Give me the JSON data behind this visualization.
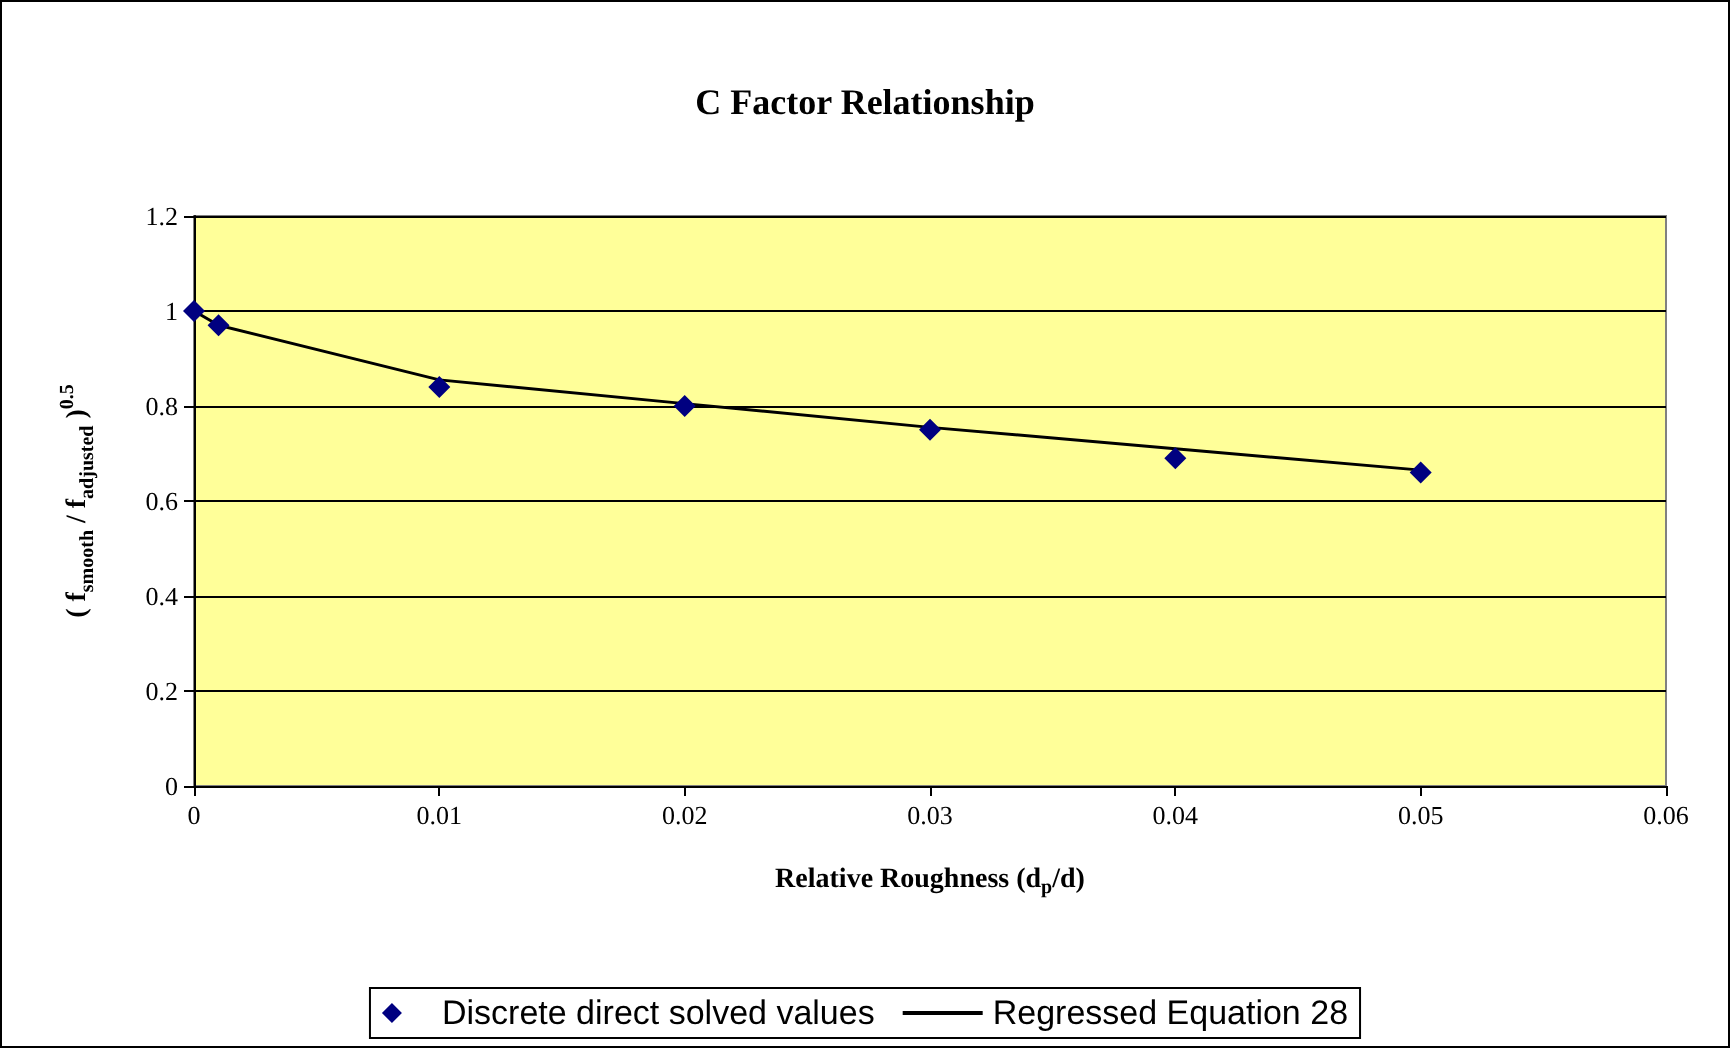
{
  "chart_data": {
    "type": "scatter",
    "title": "C Factor Relationship",
    "xlabel": "Relative Roughness (d$_{p}$/d)",
    "ylabel": "( f$_{smooth}$ / f$_{adjusted}$ )$^{0.5}$",
    "series": [
      {
        "name": "Discrete direct solved values",
        "color": "#000080",
        "marker": "diamond",
        "x": [
          0,
          0.001,
          0.01,
          0.02,
          0.03,
          0.04,
          0.05
        ],
        "values": [
          1.0,
          0.97,
          0.84,
          0.8,
          0.75,
          0.69,
          0.66
        ]
      },
      {
        "name": "Regressed Equation 28",
        "type": "line",
        "color": "#000000",
        "marker": "none",
        "line_style": "solid",
        "x": [
          0,
          0.001,
          0.01,
          0.02,
          0.03,
          0.04,
          0.05
        ],
        "values": [
          1.0,
          0.97,
          0.855,
          0.805,
          0.755,
          0.71,
          0.665
        ]
      }
    ],
    "xlim": [
      0,
      0.06
    ],
    "xticks": [
      0,
      0.01,
      0.02,
      0.03,
      0.04,
      0.05,
      0.06
    ],
    "ylim": [
      0,
      1.2
    ],
    "yticks": [
      0,
      0.2,
      0.4,
      0.6,
      0.8,
      1,
      1.2
    ],
    "grid": "y",
    "legend": "bottom"
  }
}
